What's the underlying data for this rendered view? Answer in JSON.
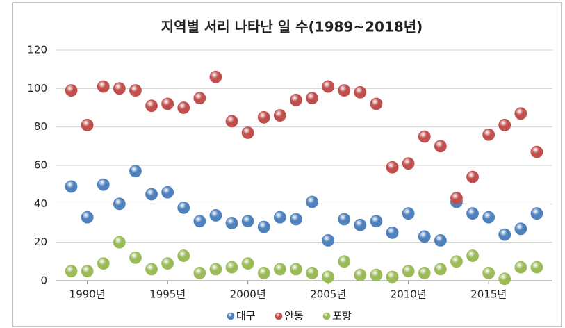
{
  "chart_data": {
    "type": "scatter",
    "title": "지역별 서리 나타난 일 수(1989~2018년)",
    "categories": [
      null,
      "1990년",
      null,
      null,
      null,
      null,
      "1995년",
      null,
      null,
      null,
      null,
      "2000년",
      null,
      null,
      null,
      null,
      "2005년",
      null,
      null,
      null,
      null,
      "2010년",
      null,
      null,
      null,
      null,
      "2015년",
      null,
      null,
      null
    ],
    "series": [
      {
        "name": "대구",
        "color": "#4f81bd",
        "values": [
          49,
          33,
          50,
          40,
          57,
          45,
          46,
          38,
          31,
          34,
          30,
          31,
          28,
          33,
          32,
          41,
          21,
          32,
          29,
          31,
          25,
          35,
          23,
          21,
          41,
          35,
          33,
          24,
          27,
          35
        ]
      },
      {
        "name": "안동",
        "color": "#c0504d",
        "values": [
          99,
          81,
          101,
          100,
          99,
          91,
          92,
          90,
          95,
          106,
          83,
          77,
          85,
          86,
          94,
          95,
          101,
          99,
          98,
          92,
          59,
          61,
          75,
          70,
          43,
          54,
          76,
          81,
          87,
          67
        ]
      },
      {
        "name": "포항",
        "color": "#9bbb59",
        "values": [
          5,
          5,
          9,
          20,
          12,
          6,
          9,
          13,
          4,
          6,
          7,
          9,
          4,
          6,
          6,
          4,
          2,
          10,
          3,
          3,
          2,
          5,
          4,
          6,
          10,
          13,
          4,
          1,
          7,
          7
        ]
      }
    ],
    "ylim": [
      0,
      120
    ],
    "yticks": [
      0,
      20,
      40,
      60,
      80,
      100,
      120
    ],
    "grid": true,
    "legend": "bottom"
  }
}
